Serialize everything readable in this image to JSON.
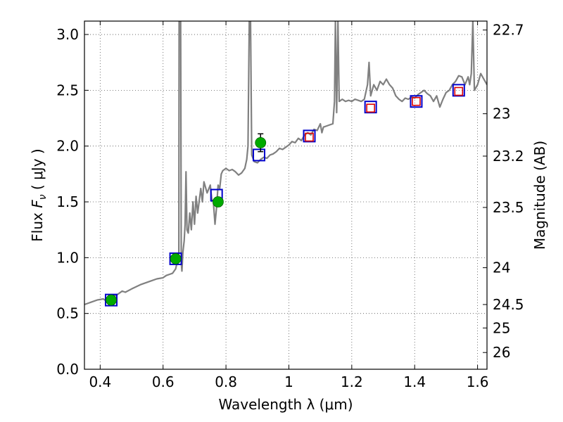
{
  "chart_data": {
    "type": "scatter",
    "xlabel": "Wavelength  λ (μm)",
    "ylabel": "Flux  F_ν  ( μJy )",
    "ylabel_parts": {
      "pre": "Flux  ",
      "sym": "F",
      "sub": "ν",
      "post": "  ( μJy )"
    },
    "y2label": "Magnitude (AB)",
    "xlim": [
      0.35,
      1.63
    ],
    "ylim": [
      0.0,
      3.12
    ],
    "grid": true,
    "x_ticks": [
      0.4,
      0.6,
      0.8,
      1,
      1.2,
      1.4,
      1.6
    ],
    "x_tick_labels": [
      "0.4",
      "0.6",
      "0.8",
      "1",
      "1.2",
      "1.4",
      "1.6"
    ],
    "y_ticks": [
      0.0,
      0.5,
      1.0,
      1.5,
      2.0,
      2.5,
      3.0
    ],
    "y_tick_labels": [
      "0.0",
      "0.5",
      "1.0",
      "1.5",
      "2.0",
      "2.5",
      "3.0"
    ],
    "y2_ticks": [
      {
        "label": "22.7",
        "flux": 3.04
      },
      {
        "label": "23",
        "flux": 2.29
      },
      {
        "label": "23.2",
        "flux": 1.91
      },
      {
        "label": "23.5",
        "flux": 1.45
      },
      {
        "label": "24",
        "flux": 0.91
      },
      {
        "label": "24.5",
        "flux": 0.58
      },
      {
        "label": "25",
        "flux": 0.37
      },
      {
        "label": "26",
        "flux": 0.15
      }
    ],
    "colors": {
      "spectrum": "#808080",
      "observed": "#00aa00",
      "model_box": "#0000cc",
      "ir_box": "#dd0000",
      "errorbar": "#000000",
      "grid": "#555555"
    },
    "series": [
      {
        "type": "line",
        "points": [
          [
            0.35,
            0.58
          ],
          [
            0.37,
            0.6
          ],
          [
            0.39,
            0.62
          ],
          [
            0.41,
            0.63
          ],
          [
            0.42,
            0.61
          ],
          [
            0.43,
            0.66
          ],
          [
            0.45,
            0.66
          ],
          [
            0.47,
            0.7
          ],
          [
            0.48,
            0.69
          ],
          [
            0.5,
            0.72
          ],
          [
            0.53,
            0.76
          ],
          [
            0.56,
            0.79
          ],
          [
            0.58,
            0.81
          ],
          [
            0.6,
            0.82
          ],
          [
            0.61,
            0.84
          ],
          [
            0.62,
            0.85
          ],
          [
            0.63,
            0.86
          ],
          [
            0.64,
            0.9
          ],
          [
            0.645,
            0.96
          ],
          [
            0.65,
            1.0
          ],
          [
            0.651,
            3.12
          ],
          [
            0.656,
            3.12
          ],
          [
            0.658,
            0.95
          ],
          [
            0.66,
            0.88
          ],
          [
            0.663,
            1.05
          ],
          [
            0.667,
            1.15
          ],
          [
            0.67,
            1.3
          ],
          [
            0.673,
            1.77
          ],
          [
            0.676,
            1.25
          ],
          [
            0.68,
            1.22
          ],
          [
            0.685,
            1.4
          ],
          [
            0.69,
            1.25
          ],
          [
            0.695,
            1.5
          ],
          [
            0.7,
            1.3
          ],
          [
            0.705,
            1.55
          ],
          [
            0.71,
            1.4
          ],
          [
            0.72,
            1.62
          ],
          [
            0.725,
            1.5
          ],
          [
            0.73,
            1.68
          ],
          [
            0.74,
            1.58
          ],
          [
            0.75,
            1.65
          ],
          [
            0.755,
            1.52
          ],
          [
            0.76,
            1.5
          ],
          [
            0.765,
            1.3
          ],
          [
            0.77,
            1.45
          ],
          [
            0.775,
            1.65
          ],
          [
            0.78,
            1.62
          ],
          [
            0.785,
            1.75
          ],
          [
            0.79,
            1.78
          ],
          [
            0.8,
            1.8
          ],
          [
            0.81,
            1.78
          ],
          [
            0.82,
            1.79
          ],
          [
            0.83,
            1.77
          ],
          [
            0.84,
            1.74
          ],
          [
            0.85,
            1.76
          ],
          [
            0.86,
            1.8
          ],
          [
            0.866,
            1.88
          ],
          [
            0.87,
            2.0
          ],
          [
            0.874,
            3.12
          ],
          [
            0.878,
            3.12
          ],
          [
            0.882,
            1.92
          ],
          [
            0.89,
            1.86
          ],
          [
            0.9,
            1.85
          ],
          [
            0.91,
            1.88
          ],
          [
            0.92,
            1.9
          ],
          [
            0.93,
            1.89
          ],
          [
            0.94,
            1.92
          ],
          [
            0.95,
            1.93
          ],
          [
            0.96,
            1.95
          ],
          [
            0.97,
            1.98
          ],
          [
            0.98,
            1.97
          ],
          [
            0.99,
            1.99
          ],
          [
            1.0,
            2.01
          ],
          [
            1.01,
            2.04
          ],
          [
            1.02,
            2.03
          ],
          [
            1.03,
            2.07
          ],
          [
            1.04,
            2.05
          ],
          [
            1.05,
            2.1
          ],
          [
            1.06,
            2.12
          ],
          [
            1.07,
            2.1
          ],
          [
            1.08,
            2.15
          ],
          [
            1.09,
            2.14
          ],
          [
            1.1,
            2.2
          ],
          [
            1.105,
            2.12
          ],
          [
            1.11,
            2.17
          ],
          [
            1.12,
            2.18
          ],
          [
            1.13,
            2.19
          ],
          [
            1.14,
            2.2
          ],
          [
            1.145,
            2.4
          ],
          [
            1.148,
            3.12
          ],
          [
            1.152,
            2.3
          ],
          [
            1.156,
            3.12
          ],
          [
            1.16,
            2.4
          ],
          [
            1.17,
            2.42
          ],
          [
            1.18,
            2.4
          ],
          [
            1.19,
            2.41
          ],
          [
            1.2,
            2.4
          ],
          [
            1.21,
            2.42
          ],
          [
            1.22,
            2.41
          ],
          [
            1.23,
            2.4
          ],
          [
            1.24,
            2.42
          ],
          [
            1.25,
            2.55
          ],
          [
            1.255,
            2.75
          ],
          [
            1.26,
            2.45
          ],
          [
            1.27,
            2.55
          ],
          [
            1.28,
            2.5
          ],
          [
            1.29,
            2.58
          ],
          [
            1.3,
            2.55
          ],
          [
            1.31,
            2.6
          ],
          [
            1.32,
            2.55
          ],
          [
            1.33,
            2.52
          ],
          [
            1.34,
            2.45
          ],
          [
            1.35,
            2.42
          ],
          [
            1.36,
            2.4
          ],
          [
            1.37,
            2.43
          ],
          [
            1.38,
            2.42
          ],
          [
            1.39,
            2.44
          ],
          [
            1.4,
            2.43
          ],
          [
            1.41,
            2.46
          ],
          [
            1.42,
            2.48
          ],
          [
            1.43,
            2.5
          ],
          [
            1.44,
            2.47
          ],
          [
            1.45,
            2.45
          ],
          [
            1.46,
            2.4
          ],
          [
            1.47,
            2.45
          ],
          [
            1.48,
            2.35
          ],
          [
            1.49,
            2.42
          ],
          [
            1.5,
            2.48
          ],
          [
            1.51,
            2.5
          ],
          [
            1.52,
            2.55
          ],
          [
            1.53,
            2.58
          ],
          [
            1.54,
            2.63
          ],
          [
            1.55,
            2.62
          ],
          [
            1.56,
            2.55
          ],
          [
            1.57,
            2.62
          ],
          [
            1.575,
            2.55
          ],
          [
            1.58,
            2.65
          ],
          [
            1.585,
            3.12
          ],
          [
            1.59,
            2.5
          ],
          [
            1.6,
            2.55
          ],
          [
            1.61,
            2.65
          ],
          [
            1.62,
            2.6
          ],
          [
            1.63,
            2.55
          ]
        ]
      },
      {
        "type": "scatter",
        "points": [
          {
            "x": 0.435,
            "y": 0.62,
            "err": 0.04
          },
          {
            "x": 0.64,
            "y": 0.99,
            "err": 0.04
          },
          {
            "x": 0.775,
            "y": 1.5,
            "err": 0.04
          },
          {
            "x": 0.91,
            "y": 2.03,
            "err": 0.08
          }
        ]
      },
      {
        "type": "scatter",
        "points": [
          {
            "x": 0.435,
            "y": 0.62
          },
          {
            "x": 0.64,
            "y": 0.99
          },
          {
            "x": 0.77,
            "y": 1.56
          },
          {
            "x": 0.905,
            "y": 1.92
          },
          {
            "x": 1.065,
            "y": 2.09
          },
          {
            "x": 1.26,
            "y": 2.35
          },
          {
            "x": 1.405,
            "y": 2.4
          },
          {
            "x": 1.54,
            "y": 2.5
          }
        ]
      },
      {
        "type": "scatter",
        "points": [
          {
            "x": 1.065,
            "y": 2.08
          },
          {
            "x": 1.26,
            "y": 2.34
          },
          {
            "x": 1.405,
            "y": 2.4
          },
          {
            "x": 1.54,
            "y": 2.49
          }
        ]
      }
    ]
  }
}
